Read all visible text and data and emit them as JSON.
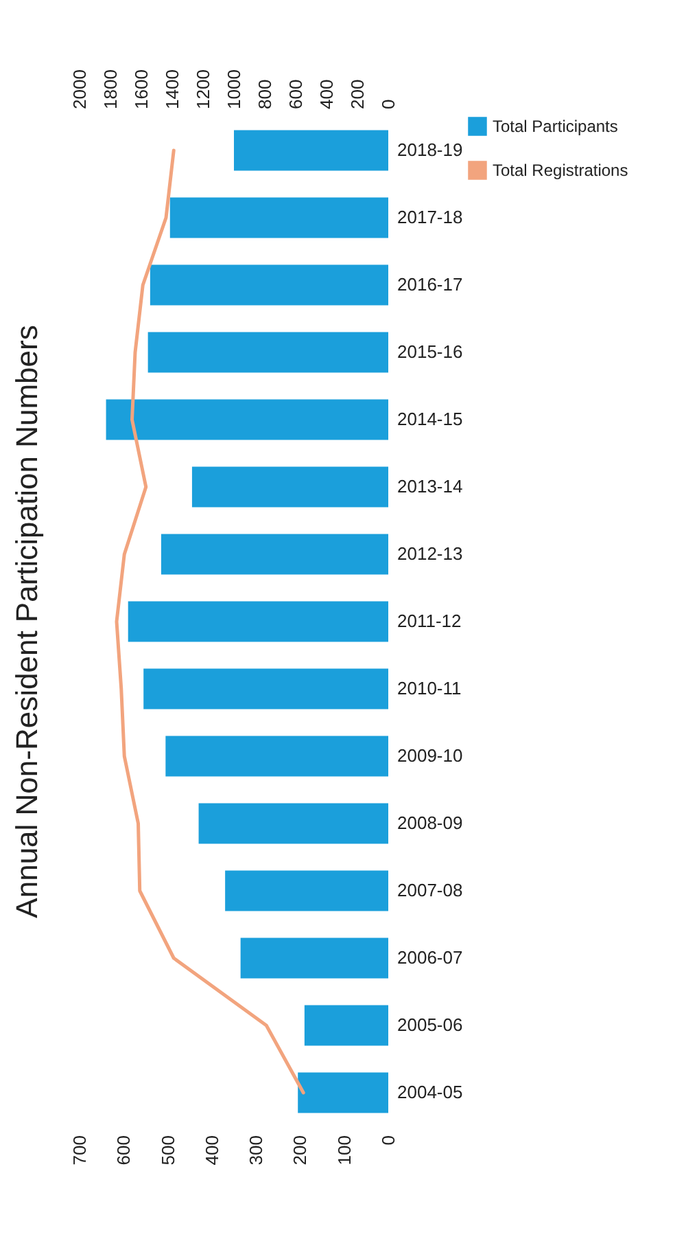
{
  "chart_data": {
    "type": "bar",
    "orientation": "horizontal",
    "title": "Annual Non-Resident Participation Numbers",
    "categories": [
      "2018-19",
      "2017-18",
      "2016-17",
      "2015-16",
      "2014-15",
      "2013-14",
      "2012-13",
      "2011-12",
      "2010-11",
      "2009-10",
      "2008-09",
      "2007-08",
      "2006-07",
      "2005-06",
      "2004-05"
    ],
    "series": [
      {
        "name": "Total Participants",
        "color": "#1b9fdb",
        "values": [
          350,
          495,
          540,
          545,
          640,
          445,
          515,
          590,
          555,
          505,
          430,
          370,
          335,
          190,
          205
        ]
      },
      {
        "name": "Total Registrations",
        "type": "line",
        "axis": "x2",
        "color": "#f2a47e",
        "values": [
          1390,
          1440,
          1590,
          1640,
          1660,
          1570,
          1710,
          1760,
          1730,
          1710,
          1620,
          1610,
          1390,
          790,
          550
        ]
      }
    ],
    "xlim": [
      700,
      0
    ],
    "xticks": [
      0,
      100,
      200,
      300,
      400,
      500,
      600,
      700
    ],
    "x2lim": [
      2000,
      0
    ],
    "x2ticks": [
      0,
      200,
      400,
      600,
      800,
      1000,
      1200,
      1400,
      1600,
      1800,
      2000
    ],
    "legend": "right"
  }
}
